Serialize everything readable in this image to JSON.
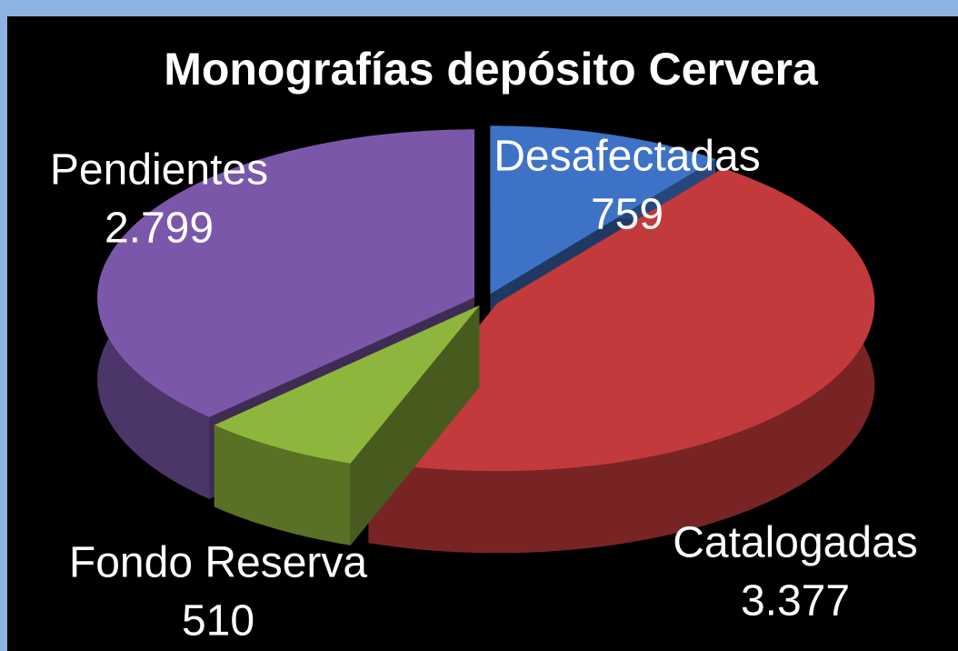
{
  "chart_data": {
    "type": "pie3d",
    "title": "Monografías depósito Cervera",
    "categories": [
      "Desafectadas",
      "Catalogadas",
      "Fondo Reserva",
      "Pendientes"
    ],
    "values": [
      759,
      3377,
      510,
      2799
    ],
    "value_labels": [
      "759",
      "3.377",
      "510",
      "2.799"
    ],
    "colors": [
      "#3d72c6",
      "#c23a3c",
      "#8fb63c",
      "#7b57aa"
    ]
  }
}
